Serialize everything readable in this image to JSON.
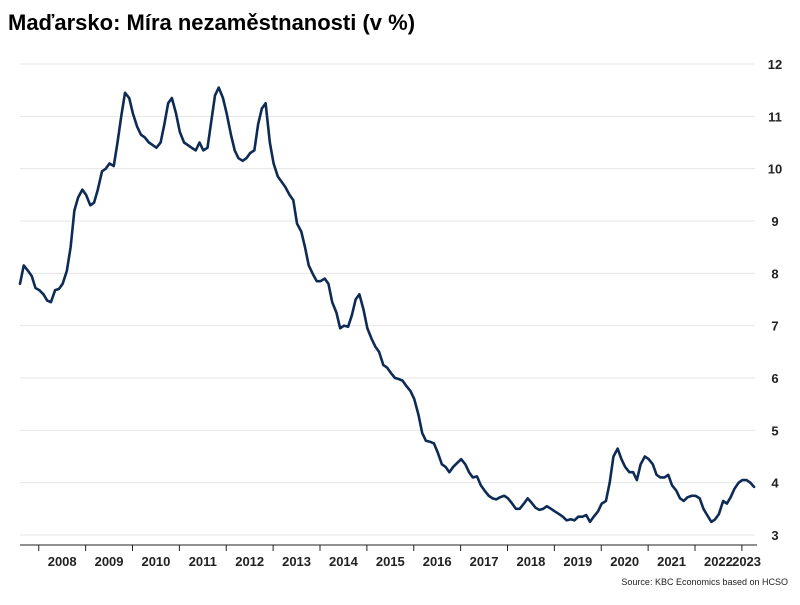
{
  "title": "Maďarsko: Míra nezaměstnanosti (v %)",
  "source": "Source: KBC Economics based on HCSO",
  "colors": {
    "line": "#0d2b55",
    "grid": "#e6e6e6",
    "axis": "#222222",
    "text": "#222222"
  },
  "chart_data": {
    "type": "line",
    "title": "Maďarsko: Míra nezaměstnanosti (v %)",
    "xlabel": "",
    "ylabel": "",
    "y_axis_position": "right",
    "ylim": [
      3,
      12
    ],
    "xlim": [
      2007.6,
      2023.28
    ],
    "grid": true,
    "legend": "none",
    "y_ticks": [
      3,
      4,
      5,
      6,
      7,
      8,
      9,
      10,
      11,
      12
    ],
    "x_tick_labels": [
      {
        "label": "2008",
        "x": 2008.5
      },
      {
        "label": "2009",
        "x": 2009.5
      },
      {
        "label": "2010",
        "x": 2010.5
      },
      {
        "label": "2011",
        "x": 2011.5
      },
      {
        "label": "2012",
        "x": 2012.5
      },
      {
        "label": "2013",
        "x": 2013.5
      },
      {
        "label": "2014",
        "x": 2014.5
      },
      {
        "label": "2015",
        "x": 2015.5
      },
      {
        "label": "2016",
        "x": 2016.5
      },
      {
        "label": "2017",
        "x": 2017.5
      },
      {
        "label": "2018",
        "x": 2018.5
      },
      {
        "label": "2019",
        "x": 2019.5
      },
      {
        "label": "2020",
        "x": 2020.5
      },
      {
        "label": "2021",
        "x": 2021.5
      },
      {
        "label": "2022",
        "x": 2022.5
      },
      {
        "label": "2023",
        "x": 2023.1
      }
    ],
    "x_tick_marks": [
      2008,
      2009,
      2010,
      2011,
      2012,
      2013,
      2014,
      2015,
      2016,
      2017,
      2018,
      2019,
      2020,
      2021,
      2022,
      2023
    ],
    "series": [
      {
        "x": [
          2007.6,
          2007.68,
          2007.77,
          2007.85,
          2007.93,
          2008.01,
          2008.1,
          2008.18,
          2008.26,
          2008.35,
          2008.43,
          2008.51,
          2008.6,
          2008.68,
          2008.76,
          2008.84,
          2008.93,
          2009.01,
          2009.1,
          2009.18,
          2009.26,
          2009.35,
          2009.43,
          2009.51,
          2009.6,
          2009.68,
          2009.76,
          2009.84,
          2009.93,
          2010.01,
          2010.1,
          2010.18,
          2010.26,
          2010.35,
          2010.43,
          2010.51,
          2010.6,
          2010.68,
          2010.76,
          2010.84,
          2010.93,
          2011.01,
          2011.1,
          2011.18,
          2011.26,
          2011.35,
          2011.43,
          2011.51,
          2011.6,
          2011.68,
          2011.76,
          2011.84,
          2011.93,
          2012.01,
          2012.1,
          2012.18,
          2012.26,
          2012.35,
          2012.43,
          2012.51,
          2012.6,
          2012.68,
          2012.76,
          2012.84,
          2012.93,
          2013.01,
          2013.1,
          2013.18,
          2013.26,
          2013.35,
          2013.43,
          2013.51,
          2013.6,
          2013.68,
          2013.76,
          2013.84,
          2013.93,
          2014.01,
          2014.1,
          2014.18,
          2014.26,
          2014.35,
          2014.43,
          2014.51,
          2014.6,
          2014.68,
          2014.76,
          2014.84,
          2014.93,
          2015.01,
          2015.1,
          2015.18,
          2015.26,
          2015.35,
          2015.43,
          2015.51,
          2015.6,
          2015.68,
          2015.76,
          2015.84,
          2015.93,
          2016.01,
          2016.1,
          2016.18,
          2016.26,
          2016.35,
          2016.43,
          2016.51,
          2016.6,
          2016.68,
          2016.76,
          2016.84,
          2016.93,
          2017.01,
          2017.1,
          2017.18,
          2017.26,
          2017.35,
          2017.43,
          2017.51,
          2017.6,
          2017.68,
          2017.76,
          2017.84,
          2017.93,
          2018.01,
          2018.1,
          2018.18,
          2018.26,
          2018.35,
          2018.43,
          2018.51,
          2018.6,
          2018.68,
          2018.76,
          2018.84,
          2018.93,
          2019.01,
          2019.1,
          2019.18,
          2019.26,
          2019.35,
          2019.43,
          2019.51,
          2019.6,
          2019.68,
          2019.76,
          2019.84,
          2019.93,
          2020.01,
          2020.1,
          2020.18,
          2020.26,
          2020.35,
          2020.43,
          2020.51,
          2020.6,
          2020.68,
          2020.76,
          2020.84,
          2020.93,
          2021.01,
          2021.1,
          2021.18,
          2021.26,
          2021.35,
          2021.43,
          2021.51,
          2021.6,
          2021.68,
          2021.76,
          2021.84,
          2021.93,
          2022.01,
          2022.1,
          2022.18,
          2022.26,
          2022.35,
          2022.43,
          2022.51,
          2022.6,
          2022.68,
          2022.76,
          2022.84,
          2022.93,
          2023.01,
          2023.1,
          2023.18,
          2023.26
        ],
        "values": [
          7.8,
          8.15,
          8.05,
          7.95,
          7.72,
          7.68,
          7.6,
          7.48,
          7.45,
          7.68,
          7.7,
          7.8,
          8.05,
          8.5,
          9.2,
          9.45,
          9.6,
          9.5,
          9.3,
          9.35,
          9.6,
          9.95,
          10.0,
          10.1,
          10.05,
          10.5,
          11.0,
          11.45,
          11.35,
          11.05,
          10.8,
          10.65,
          10.6,
          10.5,
          10.45,
          10.4,
          10.5,
          10.85,
          11.25,
          11.35,
          11.05,
          10.7,
          10.5,
          10.45,
          10.4,
          10.35,
          10.5,
          10.35,
          10.4,
          10.9,
          11.4,
          11.55,
          11.35,
          11.05,
          10.65,
          10.35,
          10.2,
          10.15,
          10.2,
          10.3,
          10.35,
          10.85,
          11.15,
          11.25,
          10.5,
          10.1,
          9.85,
          9.75,
          9.65,
          9.5,
          9.4,
          8.95,
          8.8,
          8.5,
          8.15,
          8.0,
          7.85,
          7.85,
          7.9,
          7.8,
          7.45,
          7.25,
          6.95,
          7.0,
          6.98,
          7.2,
          7.5,
          7.6,
          7.3,
          6.95,
          6.75,
          6.6,
          6.5,
          6.25,
          6.2,
          6.1,
          6.0,
          5.98,
          5.95,
          5.85,
          5.75,
          5.6,
          5.3,
          4.95,
          4.8,
          4.78,
          4.75,
          4.58,
          4.35,
          4.3,
          4.2,
          4.3,
          4.38,
          4.45,
          4.35,
          4.2,
          4.1,
          4.12,
          3.95,
          3.85,
          3.75,
          3.7,
          3.68,
          3.72,
          3.75,
          3.7,
          3.6,
          3.5,
          3.5,
          3.6,
          3.7,
          3.62,
          3.52,
          3.48,
          3.5,
          3.55,
          3.5,
          3.45,
          3.4,
          3.35,
          3.28,
          3.3,
          3.28,
          3.35,
          3.35,
          3.38,
          3.25,
          3.35,
          3.45,
          3.6,
          3.65,
          4.0,
          4.5,
          4.65,
          4.45,
          4.3,
          4.2,
          4.2,
          4.05,
          4.35,
          4.5,
          4.45,
          4.35,
          4.15,
          4.1,
          4.1,
          4.15,
          3.95,
          3.85,
          3.7,
          3.65,
          3.72,
          3.75,
          3.75,
          3.7,
          3.5,
          3.38,
          3.25,
          3.3,
          3.4,
          3.65,
          3.6,
          3.72,
          3.88,
          4.0,
          4.05,
          4.05,
          4.0,
          3.92
        ]
      }
    ]
  }
}
